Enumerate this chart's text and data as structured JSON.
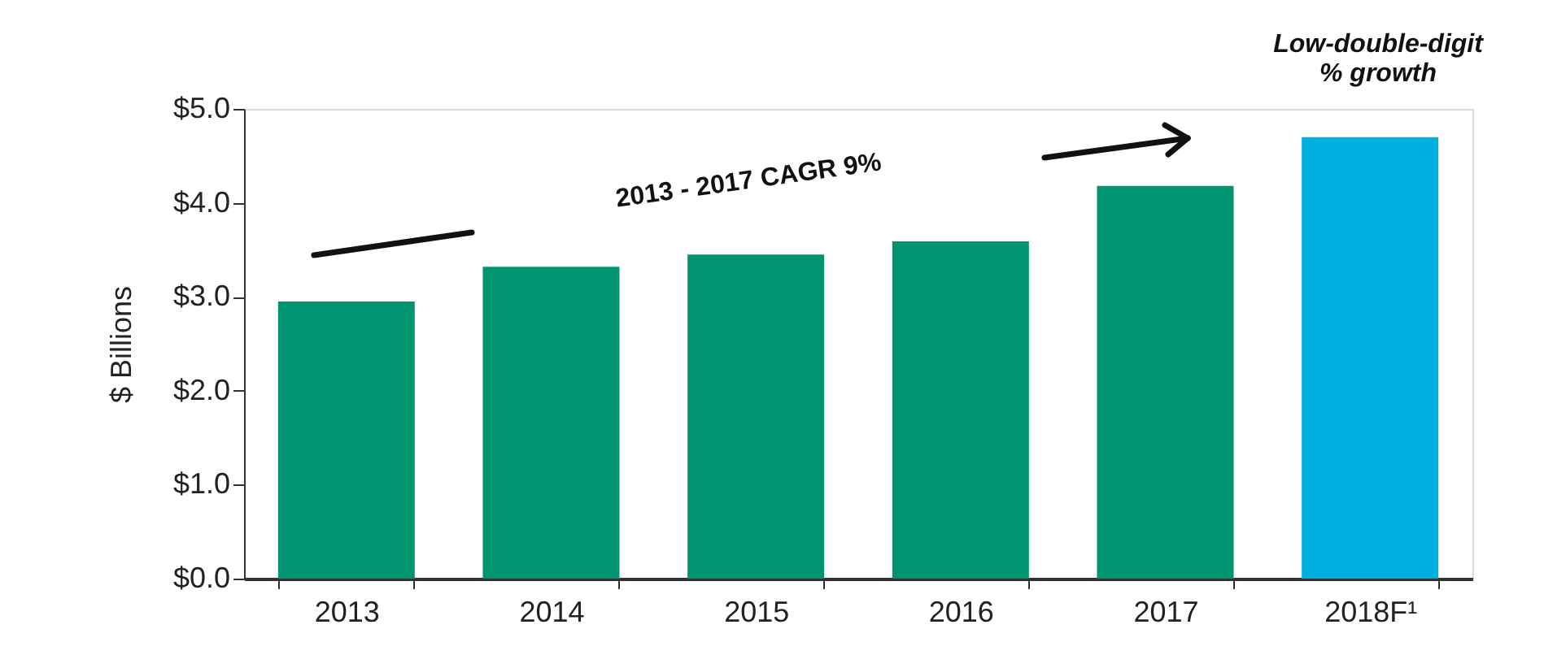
{
  "chart_data": {
    "type": "bar",
    "ylabel": "$ Billions",
    "categories": [
      "2013",
      "2014",
      "2015",
      "2016",
      "2017",
      "2018F¹"
    ],
    "values": [
      2.95,
      3.32,
      3.45,
      3.59,
      4.18,
      4.7
    ],
    "colors": [
      "#009470",
      "#009470",
      "#009470",
      "#009470",
      "#009470",
      "#00b0e0"
    ],
    "ylim": [
      0,
      5
    ],
    "yticks": [
      {
        "value": 0,
        "label": "$0.0"
      },
      {
        "value": 1,
        "label": "$1.0"
      },
      {
        "value": 2,
        "label": "$2.0"
      },
      {
        "value": 3,
        "label": "$3.0"
      },
      {
        "value": 4,
        "label": "$4.0"
      },
      {
        "value": 5,
        "label": "$5.0"
      }
    ],
    "grid": false,
    "annotations": [
      "2013 - 2017 CAGR 9%",
      "Low-double-digit\n% growth"
    ]
  }
}
